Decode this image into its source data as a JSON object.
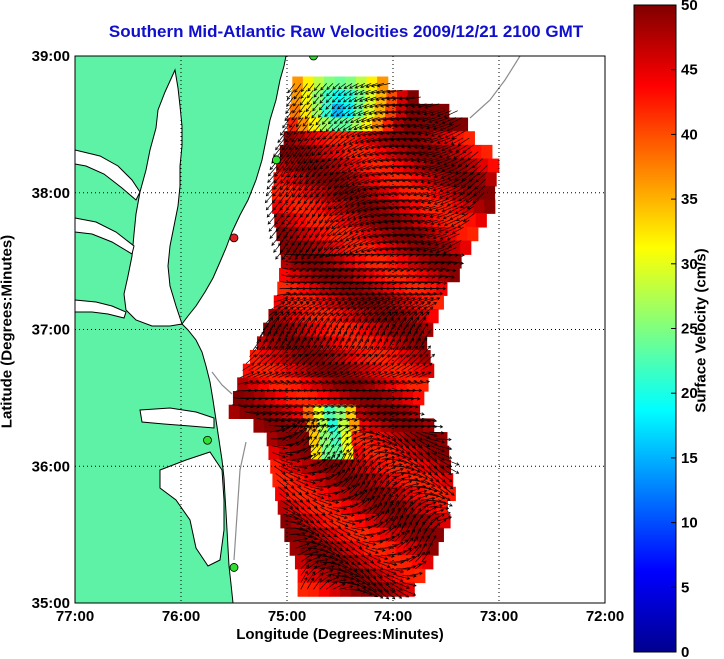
{
  "title": "Southern Mid-Atlantic Raw Velocities 2009/12/21 2100 GMT",
  "axes": {
    "xlabel": "Longitude (Degrees:Minutes)",
    "ylabel": "Latitude (Degrees:Minutes)",
    "x_ticks": [
      "77:00",
      "76:00",
      "75:00",
      "74:00",
      "73:00",
      "72:00"
    ],
    "y_ticks": [
      "39:00",
      "38:00",
      "37:00",
      "36:00",
      "35:00"
    ],
    "lon_range": [
      -77,
      -72
    ],
    "lat_range": [
      35,
      39
    ],
    "grid": true
  },
  "colorbar": {
    "label": "Surface Velocity (cm/s)",
    "ticks": [
      "0",
      "5",
      "10",
      "15",
      "20",
      "25",
      "30",
      "35",
      "40",
      "45",
      "50"
    ],
    "range": [
      0,
      50
    ],
    "colormap": "jet"
  },
  "colors": {
    "land": "#5ef2a6",
    "title": "#1010cc",
    "coast": "#000000",
    "bathymetry": "#8c8c8c",
    "station_green": "#2fe02f",
    "station_red": "#e02020"
  },
  "stations": [
    {
      "lon": -74.75,
      "lat": 39.0,
      "status": "green"
    },
    {
      "lon": -75.1,
      "lat": 38.24,
      "status": "green"
    },
    {
      "lon": -75.5,
      "lat": 37.67,
      "status": "red"
    },
    {
      "lon": -75.75,
      "lat": 36.19,
      "status": "green"
    },
    {
      "lon": -75.5,
      "lat": 35.26,
      "status": "green"
    }
  ],
  "velocity_regions": [
    {
      "name": "north",
      "lat_min": 37.6,
      "lat_max": 38.85,
      "speed_range": [
        8,
        50
      ],
      "low_speed_zone": [
        38.45,
        38.85
      ]
    },
    {
      "name": "middle",
      "lat_min": 36.3,
      "lat_max": 37.6,
      "speed_range": [
        38,
        50
      ]
    },
    {
      "name": "cape-hatteras",
      "lat_min": 36.0,
      "lat_max": 36.5,
      "speed_range": [
        15,
        45
      ]
    },
    {
      "name": "south",
      "lat_min": 35.05,
      "lat_max": 36.3,
      "speed_range": [
        42,
        50
      ]
    }
  ]
}
